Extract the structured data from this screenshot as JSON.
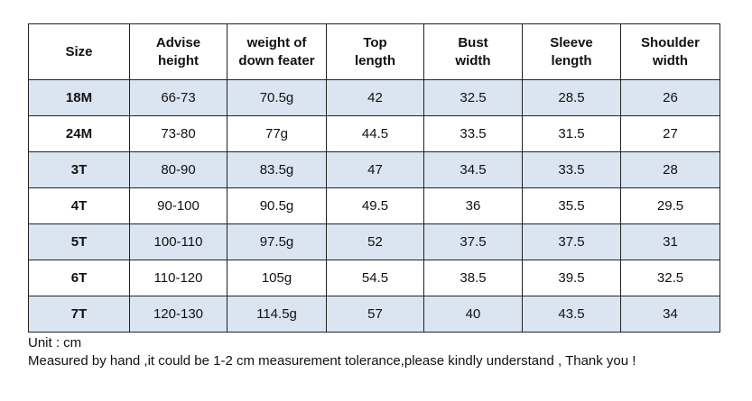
{
  "table": {
    "headers": [
      "Size",
      "Advise\nheight",
      "weight of\ndown feater",
      "Top\nlength",
      "Bust\nwidth",
      "Sleeve\nlength",
      "Shoulder\nwidth"
    ],
    "rows": [
      [
        "18M",
        "66-73",
        "70.5g",
        "42",
        "32.5",
        "28.5",
        "26"
      ],
      [
        "24M",
        "73-80",
        "77g",
        "44.5",
        "33.5",
        "31.5",
        "27"
      ],
      [
        "3T",
        "80-90",
        "83.5g",
        "47",
        "34.5",
        "33.5",
        "28"
      ],
      [
        "4T",
        "90-100",
        "90.5g",
        "49.5",
        "36",
        "35.5",
        "29.5"
      ],
      [
        "5T",
        "100-110",
        "97.5g",
        "52",
        "37.5",
        "37.5",
        "31"
      ],
      [
        "6T",
        "110-120",
        "105g",
        "54.5",
        "38.5",
        "39.5",
        "32.5"
      ],
      [
        "7T",
        "120-130",
        "114.5g",
        "57",
        "40",
        "43.5",
        "34"
      ]
    ],
    "shaded_row_color": "#dbe5f1"
  },
  "notes": {
    "unit": "Unit : cm",
    "disclaimer": "Measured by hand ,it could be 1-2 cm measurement tolerance,please kindly understand , Thank you !"
  }
}
